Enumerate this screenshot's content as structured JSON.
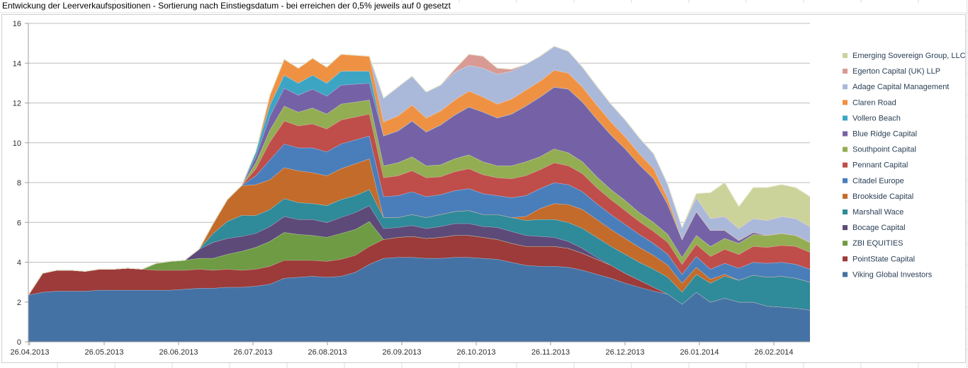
{
  "title": "Entwickung der Leerverkaufspositionen - Sortierung nach Einstiegsdatum - bei erreichen der 0,5% jeweils auf 0 gesetzt",
  "chart_data": {
    "type": "area",
    "stacked": true,
    "title": "Entwickung der Leerverkaufspositionen - Sortierung nach Einstiegsdatum - bei erreichen der 0,5% jeweils auf 0 gesetzt",
    "ylim": [
      0,
      16
    ],
    "ytick_interval": 2,
    "y_tick_labels": [
      "0",
      "2",
      "4",
      "6",
      "8",
      "10",
      "12",
      "14",
      "16"
    ],
    "x_tick_labels": [
      "26.04.2013",
      "26.05.2013",
      "26.06.2013",
      "26.07.2013",
      "26.08.2013",
      "26.09.2013",
      "26.10.2013",
      "26.11.2013",
      "26.12.2013",
      "26.01.2014",
      "26.02.2014"
    ],
    "grid": true,
    "legend_position": "right",
    "legend_order_top_to_bottom": [
      "Emerging Sovereign Group, LLC",
      "Egerton Capital (UK) LLP",
      "Adage Capital Management",
      "Claren Road",
      "Vollero Beach",
      "Blue Ridge Capital",
      "Southpoint Capital",
      "Pennant Capital",
      "Citadel Europe",
      "Brookside Capital",
      "Marshall Wace",
      "Bocage Capital",
      "ZBI EQUITIES",
      "PointState Capital",
      "Viking Global Investors"
    ],
    "series": [
      {
        "name": "Viking Global Investors",
        "color": "#4472a4",
        "values": [
          2.35,
          2.5,
          2.55,
          2.55,
          2.55,
          2.6,
          2.6,
          2.6,
          2.6,
          2.6,
          2.6,
          2.65,
          2.7,
          2.7,
          2.75,
          2.75,
          2.8,
          2.9,
          3.2,
          3.25,
          3.3,
          3.25,
          3.3,
          3.5,
          3.9,
          4.2,
          4.25,
          4.25,
          4.2,
          4.2,
          4.25,
          4.25,
          4.2,
          4.15,
          4.0,
          3.85,
          3.8,
          3.8,
          3.75,
          3.6,
          3.4,
          3.2,
          2.95,
          2.75,
          2.55,
          2.4,
          1.9,
          2.5,
          2.0,
          2.2,
          2.0,
          2.0,
          1.8,
          1.75,
          1.7,
          1.6
        ]
      },
      {
        "name": "PointState Capital",
        "color": "#9c3b39",
        "values": [
          0,
          0.95,
          1.05,
          1.05,
          1.0,
          1.05,
          1.05,
          1.1,
          1.05,
          1.0,
          1.0,
          0.95,
          0.95,
          0.9,
          0.9,
          0.85,
          0.85,
          0.9,
          0.9,
          0.85,
          0.8,
          0.8,
          0.85,
          0.85,
          0.9,
          0.95,
          1.0,
          1.05,
          1.0,
          1.05,
          1.1,
          1.1,
          1.05,
          1.0,
          0.95,
          0.95,
          1.0,
          1.0,
          0.95,
          0.85,
          0.75,
          0.65,
          0.5,
          0.35,
          0.2,
          0,
          0,
          0,
          0,
          0,
          0,
          0,
          0,
          0,
          0,
          0
        ]
      },
      {
        "name": "ZBI EQUITIES",
        "color": "#6e9b44",
        "values": [
          0,
          0,
          0,
          0,
          0,
          0,
          0,
          0,
          0,
          0.35,
          0.45,
          0.5,
          0.55,
          0.6,
          0.75,
          0.95,
          1.1,
          1.25,
          1.4,
          1.3,
          1.25,
          1.2,
          1.3,
          1.3,
          1.25,
          0,
          0,
          0,
          0,
          0,
          0,
          0,
          0,
          0,
          0,
          0,
          0,
          0,
          0,
          0,
          0,
          0,
          0,
          0,
          0,
          0,
          0,
          0,
          0,
          0,
          0,
          0,
          0,
          0,
          0,
          0
        ]
      },
      {
        "name": "Bocage Capital",
        "color": "#5d4a79",
        "values": [
          0,
          0,
          0,
          0,
          0,
          0,
          0,
          0,
          0,
          0,
          0,
          0,
          0.45,
          0.8,
          0.8,
          0.75,
          0.7,
          0.75,
          0.8,
          0.75,
          0.8,
          0.75,
          0.8,
          0.85,
          0.8,
          0.55,
          0.5,
          0.55,
          0.5,
          0.55,
          0.6,
          0.6,
          0.55,
          0.6,
          0.6,
          0.55,
          0.5,
          0.45,
          0.35,
          0.25,
          0.1,
          0,
          0,
          0,
          0,
          0,
          0,
          0,
          0,
          0,
          0,
          0,
          0,
          0,
          0,
          0
        ]
      },
      {
        "name": "Marshall Wace",
        "color": "#2f8a99",
        "values": [
          0,
          0,
          0,
          0,
          0,
          0,
          0,
          0,
          0,
          0,
          0,
          0,
          0,
          0.45,
          0.85,
          1.05,
          0.9,
          0.85,
          0.9,
          0.85,
          0.8,
          0.85,
          0.9,
          0.85,
          0.8,
          0.55,
          0.5,
          0.55,
          0.55,
          0.6,
          0.6,
          0.65,
          0.6,
          0.65,
          0.7,
          0.75,
          0.85,
          0.9,
          0.95,
          1.0,
          1.0,
          0.95,
          0.95,
          0.9,
          0.9,
          0.85,
          0.6,
          0.9,
          0.95,
          1.1,
          1.1,
          1.35,
          1.45,
          1.55,
          1.5,
          1.4
        ]
      },
      {
        "name": "Brookside Capital",
        "color": "#c36b2b",
        "values": [
          0,
          0,
          0,
          0,
          0,
          0,
          0,
          0,
          0,
          0,
          0,
          0,
          0,
          0.5,
          1.1,
          1.5,
          1.55,
          1.5,
          1.55,
          1.6,
          1.55,
          1.5,
          1.55,
          1.6,
          1.55,
          0,
          0,
          0,
          0,
          0,
          0,
          0,
          0,
          0,
          0,
          0.2,
          0.55,
          0.8,
          0.9,
          0.95,
          0.9,
          0.85,
          0.8,
          0.75,
          0.7,
          0.6,
          0.45,
          0.35,
          0.2,
          0.1,
          0,
          0,
          0,
          0,
          0,
          0
        ]
      },
      {
        "name": "Citadel Europe",
        "color": "#4a7ebb",
        "values": [
          0,
          0,
          0,
          0,
          0,
          0,
          0,
          0,
          0,
          0,
          0,
          0,
          0,
          0,
          0,
          0,
          0.45,
          1.0,
          1.2,
          1.15,
          1.25,
          1.2,
          1.25,
          1.2,
          1.15,
          1.05,
          1.1,
          1.15,
          1.05,
          1.0,
          1.05,
          1.1,
          1.05,
          0.95,
          1.0,
          1.05,
          1.0,
          1.05,
          1.0,
          0.9,
          0.8,
          0.75,
          0.7,
          0.65,
          0.6,
          0.55,
          0.45,
          0.55,
          0.5,
          0.55,
          0.6,
          0.65,
          0.7,
          0.7,
          0.7,
          0.65
        ]
      },
      {
        "name": "Pennant Capital",
        "color": "#bf4d4a",
        "values": [
          0,
          0,
          0,
          0,
          0,
          0,
          0,
          0,
          0,
          0,
          0,
          0,
          0,
          0,
          0,
          0,
          0.35,
          0.9,
          1.15,
          1.1,
          1.2,
          1.15,
          1.2,
          1.15,
          1.1,
          0.95,
          1.0,
          1.05,
          0.95,
          0.9,
          0.95,
          1.0,
          0.95,
          0.9,
          0.95,
          1.0,
          0.95,
          1.0,
          0.95,
          0.9,
          0.8,
          0.75,
          0.7,
          0.65,
          0.6,
          0.6,
          0.5,
          0.6,
          0.65,
          0.7,
          0.7,
          0.8,
          0.8,
          0.85,
          0.9,
          0.85
        ]
      },
      {
        "name": "Southpoint Capital",
        "color": "#93ad53",
        "values": [
          0,
          0,
          0,
          0,
          0,
          0,
          0,
          0,
          0,
          0,
          0,
          0,
          0,
          0,
          0,
          0,
          0.3,
          0.6,
          0.75,
          0.7,
          0.8,
          0.75,
          0.8,
          0.75,
          0.7,
          0.6,
          0.65,
          0.7,
          0.6,
          0.6,
          0.65,
          0.7,
          0.65,
          0.6,
          0.65,
          0.7,
          0.65,
          0.7,
          0.65,
          0.6,
          0.55,
          0.5,
          0.5,
          0.45,
          0.45,
          0.4,
          0.35,
          0.45,
          0.5,
          0.55,
          0.55,
          0.6,
          0.6,
          0.6,
          0.55,
          0.5
        ]
      },
      {
        "name": "Blue Ridge Capital",
        "color": "#7562a6",
        "values": [
          0,
          0,
          0,
          0,
          0,
          0,
          0,
          0,
          0,
          0,
          0,
          0,
          0,
          0,
          0,
          0,
          0.3,
          0.7,
          0.9,
          0.85,
          0.95,
          0.9,
          0.95,
          0.9,
          0.85,
          1.5,
          1.6,
          1.8,
          1.7,
          2.0,
          2.2,
          2.4,
          2.5,
          2.4,
          2.6,
          2.8,
          3.0,
          3.1,
          3.2,
          3.0,
          2.9,
          2.75,
          2.6,
          2.4,
          2.2,
          1.5,
          0.9,
          1.2,
          0.8,
          0.4,
          0.15,
          0.1,
          0,
          0,
          0,
          0
        ]
      },
      {
        "name": "Vollero Beach",
        "color": "#3da5c4",
        "values": [
          0,
          0,
          0,
          0,
          0,
          0,
          0,
          0,
          0,
          0,
          0,
          0,
          0,
          0,
          0,
          0,
          0.25,
          0.55,
          0.65,
          0.6,
          0.7,
          0.65,
          0.7,
          0.65,
          0.6,
          0,
          0,
          0,
          0,
          0,
          0,
          0,
          0,
          0,
          0,
          0,
          0,
          0,
          0,
          0,
          0,
          0,
          0,
          0,
          0,
          0,
          0,
          0,
          0,
          0,
          0,
          0,
          0,
          0,
          0,
          0
        ]
      },
      {
        "name": "Claren Road",
        "color": "#ef9143",
        "values": [
          0,
          0,
          0,
          0,
          0,
          0,
          0,
          0,
          0,
          0,
          0,
          0,
          0,
          0,
          0,
          0,
          0,
          0.5,
          0.8,
          0.75,
          0.85,
          0.8,
          0.85,
          0.8,
          0.75,
          0.7,
          0.75,
          0.8,
          0.7,
          0.7,
          0.75,
          0.8,
          0.75,
          0.7,
          0.75,
          0.8,
          0.8,
          0.85,
          0.8,
          0.75,
          0.7,
          0.65,
          0.6,
          0.55,
          0.5,
          0.3,
          0,
          0,
          0,
          0,
          0,
          0,
          0,
          0,
          0,
          0
        ]
      },
      {
        "name": "Adage Capital Management",
        "color": "#aab9da",
        "values": [
          0,
          0,
          0,
          0,
          0,
          0,
          0,
          0,
          0,
          0,
          0,
          0,
          0,
          0,
          0,
          0,
          0,
          0,
          0,
          0,
          0,
          0,
          0,
          0,
          0,
          1.2,
          1.45,
          1.45,
          1.3,
          1.3,
          1.4,
          1.3,
          1.45,
          1.5,
          1.4,
          1.3,
          1.25,
          1.2,
          1.1,
          1.0,
          0.95,
          0.9,
          0.85,
          0.8,
          0.75,
          0.7,
          0.6,
          0.7,
          0.6,
          0.7,
          0.6,
          0.7,
          0.75,
          0.85,
          0.85,
          0.8
        ]
      },
      {
        "name": "Egerton Capital (UK) LLP",
        "color": "#d99a94",
        "values": [
          0,
          0,
          0,
          0,
          0,
          0,
          0,
          0,
          0,
          0,
          0,
          0,
          0,
          0,
          0,
          0,
          0,
          0,
          0,
          0,
          0,
          0,
          0,
          0,
          0,
          0,
          0,
          0,
          0,
          0,
          0.15,
          0.55,
          0.6,
          0.3,
          0.1,
          0,
          0,
          0,
          0,
          0,
          0,
          0,
          0,
          0,
          0,
          0,
          0,
          0,
          0,
          0,
          0,
          0,
          0,
          0,
          0,
          0
        ]
      },
      {
        "name": "Emerging Sovereign Group, LLC",
        "color": "#cbd39b",
        "values": [
          0,
          0,
          0,
          0,
          0,
          0,
          0,
          0,
          0,
          0,
          0,
          0,
          0,
          0,
          0,
          0,
          0,
          0,
          0,
          0,
          0,
          0,
          0,
          0,
          0,
          0,
          0,
          0,
          0,
          0,
          0,
          0,
          0,
          0,
          0,
          0,
          0,
          0,
          0,
          0,
          0,
          0,
          0,
          0,
          0,
          0,
          0,
          0.2,
          1.3,
          1.7,
          1.1,
          1.55,
          1.65,
          1.6,
          1.55,
          1.5
        ]
      }
    ]
  }
}
